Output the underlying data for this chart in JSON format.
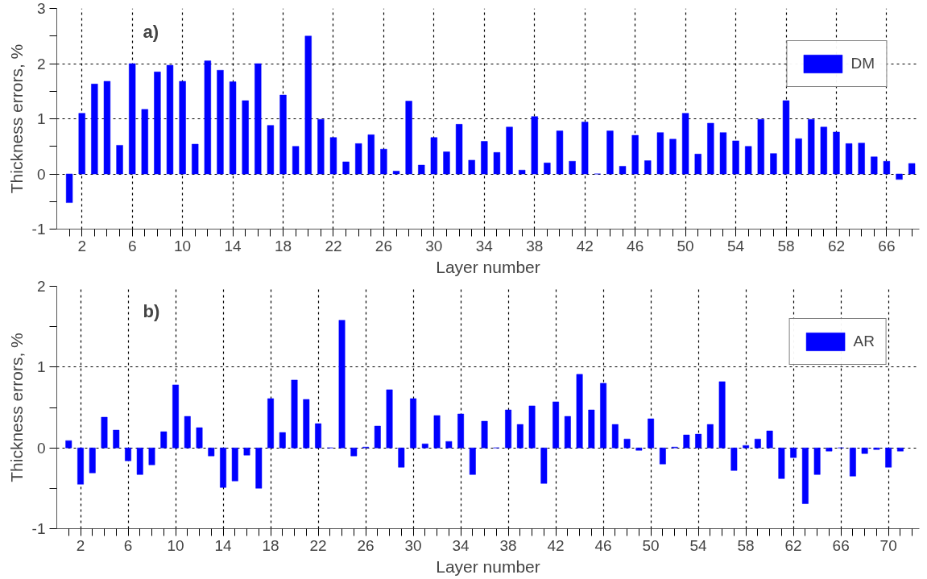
{
  "chart_data": [
    {
      "type": "bar",
      "xlabel": "Layer number",
      "ylabel": "Thickness errors, %",
      "annotations": [
        "a)"
      ],
      "x": [
        1,
        2,
        3,
        4,
        5,
        6,
        7,
        8,
        9,
        10,
        11,
        12,
        13,
        14,
        15,
        16,
        17,
        18,
        19,
        20,
        21,
        22,
        23,
        24,
        25,
        26,
        27,
        28,
        29,
        30,
        31,
        32,
        33,
        34,
        35,
        36,
        37,
        38,
        39,
        40,
        41,
        42,
        43,
        44,
        45,
        46,
        47,
        48,
        49,
        50,
        51,
        52,
        53,
        54,
        55,
        56,
        57,
        58,
        59,
        60,
        61,
        62,
        63,
        64,
        65,
        66,
        67,
        68
      ],
      "series": [
        {
          "name": "DM",
          "color": "#0000ff",
          "values": [
            -0.52,
            1.1,
            1.63,
            1.68,
            0.52,
            2.0,
            1.17,
            1.85,
            1.97,
            1.68,
            0.54,
            2.05,
            1.88,
            1.67,
            1.33,
            2.0,
            0.88,
            1.43,
            0.5,
            2.5,
            0.99,
            0.66,
            0.22,
            0.55,
            0.71,
            0.45,
            0.05,
            1.32,
            0.16,
            0.66,
            0.4,
            0.9,
            0.25,
            0.59,
            0.39,
            0.85,
            0.07,
            1.04,
            0.2,
            0.78,
            0.23,
            0.94,
            0.0,
            0.78,
            0.14,
            0.7,
            0.24,
            0.75,
            0.63,
            1.1,
            0.36,
            0.92,
            0.75,
            0.6,
            0.5,
            0.99,
            0.37,
            1.33,
            0.64,
            0.99,
            0.85,
            0.76,
            0.55,
            0.56,
            0.31,
            0.23,
            -0.1,
            0.19
          ]
        }
      ],
      "xlim": [
        0,
        68.6
      ],
      "xticks": [
        {
          "value": 1,
          "label": null
        },
        2,
        {
          "value": 3,
          "label": null
        },
        {
          "value": 4,
          "label": null
        },
        {
          "value": 5,
          "label": null
        },
        6,
        {
          "value": 7,
          "label": null
        },
        {
          "value": 8,
          "label": null
        },
        {
          "value": 9,
          "label": null
        },
        10,
        {
          "value": 11,
          "label": null
        },
        {
          "value": 12,
          "label": null
        },
        {
          "value": 13,
          "label": null
        },
        14,
        {
          "value": 15,
          "label": null
        },
        {
          "value": 16,
          "label": null
        },
        {
          "value": 17,
          "label": null
        },
        18,
        {
          "value": 19,
          "label": null
        },
        {
          "value": 20,
          "label": null
        },
        {
          "value": 21,
          "label": null
        },
        22,
        {
          "value": 23,
          "label": null
        },
        {
          "value": 24,
          "label": null
        },
        {
          "value": 25,
          "label": null
        },
        26,
        {
          "value": 27,
          "label": null
        },
        {
          "value": 28,
          "label": null
        },
        {
          "value": 29,
          "label": null
        },
        30,
        {
          "value": 31,
          "label": null
        },
        {
          "value": 32,
          "label": null
        },
        {
          "value": 33,
          "label": null
        },
        34,
        {
          "value": 35,
          "label": null
        },
        {
          "value": 36,
          "label": null
        },
        {
          "value": 37,
          "label": null
        },
        38,
        {
          "value": 39,
          "label": null
        },
        {
          "value": 40,
          "label": null
        },
        {
          "value": 41,
          "label": null
        },
        42,
        {
          "value": 43,
          "label": null
        },
        {
          "value": 44,
          "label": null
        },
        {
          "value": 45,
          "label": null
        },
        46,
        {
          "value": 47,
          "label": null
        },
        {
          "value": 48,
          "label": null
        },
        {
          "value": 49,
          "label": null
        },
        50,
        {
          "value": 51,
          "label": null
        },
        {
          "value": 52,
          "label": null
        },
        {
          "value": 53,
          "label": null
        },
        54,
        {
          "value": 55,
          "label": null
        },
        {
          "value": 56,
          "label": null
        },
        {
          "value": 57,
          "label": null
        },
        58,
        {
          "value": 59,
          "label": null
        },
        {
          "value": 60,
          "label": null
        },
        {
          "value": 61,
          "label": null
        },
        62,
        {
          "value": 63,
          "label": null
        },
        {
          "value": 64,
          "label": null
        },
        {
          "value": 65,
          "label": null
        },
        66,
        {
          "value": 67,
          "label": null
        },
        {
          "value": 68,
          "label": null
        }
      ],
      "ylim": [
        -1,
        3
      ],
      "yticks": [
        -1,
        {
          "value": -0.5,
          "label": null
        },
        0,
        {
          "value": 0.5,
          "label": null
        },
        1,
        {
          "value": 1.5,
          "label": null
        },
        2,
        {
          "value": 2.5,
          "label": null
        },
        3
      ],
      "grid": true,
      "legend": "top right"
    },
    {
      "type": "bar",
      "xlabel": "Layer number",
      "ylabel": "Thickness errors, %",
      "annotations": [
        "b)"
      ],
      "x": [
        1,
        2,
        3,
        4,
        5,
        6,
        7,
        8,
        9,
        10,
        11,
        12,
        13,
        14,
        15,
        16,
        17,
        18,
        19,
        20,
        21,
        22,
        23,
        24,
        25,
        26,
        27,
        28,
        29,
        30,
        31,
        32,
        33,
        34,
        35,
        36,
        37,
        38,
        39,
        40,
        41,
        42,
        43,
        44,
        45,
        46,
        47,
        48,
        49,
        50,
        51,
        52,
        53,
        54,
        55,
        56,
        57,
        58,
        59,
        60,
        61,
        62,
        63,
        64,
        65,
        66,
        67,
        68,
        69,
        70,
        71
      ],
      "series": [
        {
          "name": "AR",
          "color": "#0000ff",
          "values": [
            0.09,
            -0.45,
            -0.31,
            0.38,
            0.22,
            -0.16,
            -0.33,
            -0.21,
            0.2,
            0.78,
            0.39,
            0.25,
            -0.1,
            -0.49,
            -0.41,
            -0.09,
            -0.5,
            0.61,
            0.19,
            0.84,
            0.6,
            0.3,
            0.0,
            1.58,
            -0.1,
            0.01,
            0.27,
            0.72,
            -0.24,
            0.61,
            0.05,
            0.4,
            0.08,
            0.42,
            -0.33,
            0.33,
            0.0,
            0.47,
            0.29,
            0.52,
            -0.44,
            0.57,
            0.39,
            0.91,
            0.47,
            0.8,
            0.29,
            0.11,
            -0.03,
            0.36,
            -0.2,
            0.01,
            0.16,
            0.17,
            0.29,
            0.82,
            -0.28,
            0.03,
            0.11,
            0.21,
            -0.38,
            -0.12,
            -0.69,
            -0.33,
            -0.04,
            0.0,
            -0.35,
            -0.07,
            -0.02,
            -0.24,
            -0.04
          ]
        }
      ],
      "xlim": [
        0,
        72.6
      ],
      "xticks": [
        {
          "value": 1,
          "label": null
        },
        2,
        {
          "value": 3,
          "label": null
        },
        {
          "value": 4,
          "label": null
        },
        {
          "value": 5,
          "label": null
        },
        6,
        {
          "value": 7,
          "label": null
        },
        {
          "value": 8,
          "label": null
        },
        {
          "value": 9,
          "label": null
        },
        10,
        {
          "value": 11,
          "label": null
        },
        {
          "value": 12,
          "label": null
        },
        {
          "value": 13,
          "label": null
        },
        14,
        {
          "value": 15,
          "label": null
        },
        {
          "value": 16,
          "label": null
        },
        {
          "value": 17,
          "label": null
        },
        18,
        {
          "value": 19,
          "label": null
        },
        {
          "value": 20,
          "label": null
        },
        {
          "value": 21,
          "label": null
        },
        22,
        {
          "value": 23,
          "label": null
        },
        {
          "value": 24,
          "label": null
        },
        {
          "value": 25,
          "label": null
        },
        26,
        {
          "value": 27,
          "label": null
        },
        {
          "value": 28,
          "label": null
        },
        {
          "value": 29,
          "label": null
        },
        30,
        {
          "value": 31,
          "label": null
        },
        {
          "value": 32,
          "label": null
        },
        {
          "value": 33,
          "label": null
        },
        34,
        {
          "value": 35,
          "label": null
        },
        {
          "value": 36,
          "label": null
        },
        {
          "value": 37,
          "label": null
        },
        38,
        {
          "value": 39,
          "label": null
        },
        {
          "value": 40,
          "label": null
        },
        {
          "value": 41,
          "label": null
        },
        42,
        {
          "value": 43,
          "label": null
        },
        {
          "value": 44,
          "label": null
        },
        {
          "value": 45,
          "label": null
        },
        46,
        {
          "value": 47,
          "label": null
        },
        {
          "value": 48,
          "label": null
        },
        {
          "value": 49,
          "label": null
        },
        50,
        {
          "value": 51,
          "label": null
        },
        {
          "value": 52,
          "label": null
        },
        {
          "value": 53,
          "label": null
        },
        54,
        {
          "value": 55,
          "label": null
        },
        {
          "value": 56,
          "label": null
        },
        {
          "value": 57,
          "label": null
        },
        58,
        {
          "value": 59,
          "label": null
        },
        {
          "value": 60,
          "label": null
        },
        {
          "value": 61,
          "label": null
        },
        62,
        {
          "value": 63,
          "label": null
        },
        {
          "value": 64,
          "label": null
        },
        {
          "value": 65,
          "label": null
        },
        66,
        {
          "value": 67,
          "label": null
        },
        {
          "value": 68,
          "label": null
        },
        {
          "value": 69,
          "label": null
        },
        70,
        {
          "value": 71,
          "label": null
        },
        {
          "value": 72,
          "label": null
        }
      ],
      "ylim": [
        -1,
        2
      ],
      "yticks": [
        -1,
        {
          "value": -0.5,
          "label": null
        },
        0,
        {
          "value": 0.5,
          "label": null
        },
        1,
        {
          "value": 1.5,
          "label": null
        },
        2
      ],
      "grid": true,
      "legend": "top right"
    }
  ]
}
